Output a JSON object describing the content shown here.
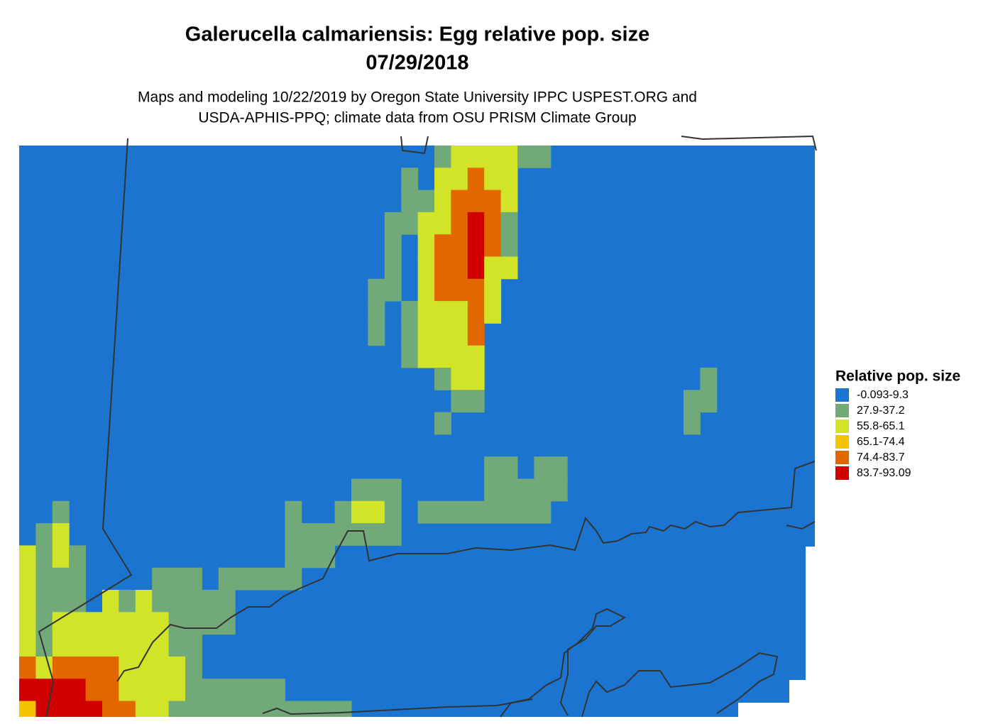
{
  "header": {
    "title": [
      "Galerucella calmariensis: Egg relative pop. size",
      "07/29/2018"
    ],
    "subtitle": [
      "Maps and modeling 10/22/2019 by Oregon State University IPPC USPEST.ORG and",
      "USDA-APHIS-PPQ; climate data from OSU PRISM Climate Group"
    ]
  },
  "legend": {
    "title": "Relative pop. size",
    "entries": [
      {
        "label": "-0.093-9.3",
        "color": "#1b75d0"
      },
      {
        "label": "27.9-37.2",
        "color": "#72a979"
      },
      {
        "label": "55.8-65.1",
        "color": "#d2e428"
      },
      {
        "label": "65.1-74.4",
        "color": "#f4c400"
      },
      {
        "label": "74.4-83.7",
        "color": "#e36700"
      },
      {
        "label": "83.7-93.09",
        "color": "#d00000"
      }
    ]
  }
}
